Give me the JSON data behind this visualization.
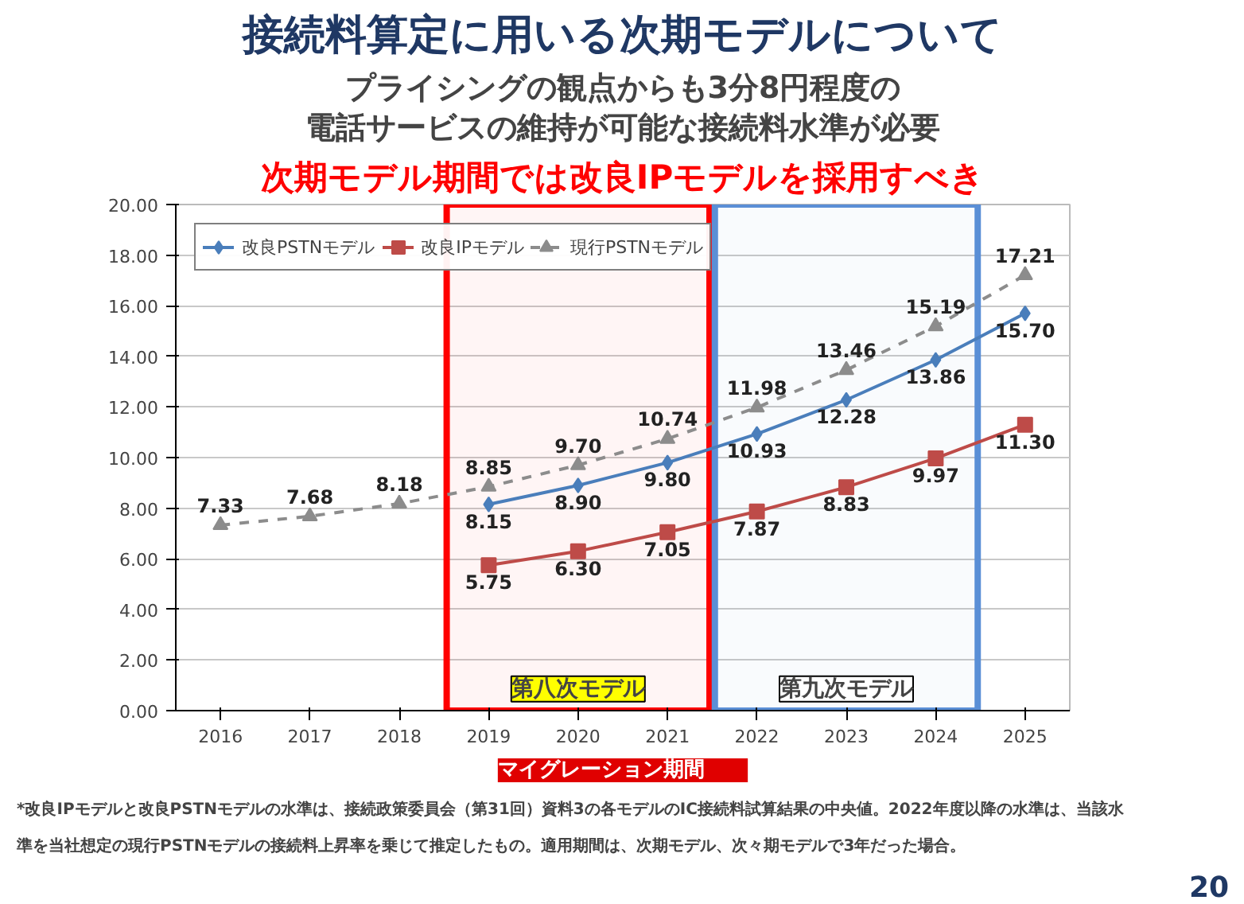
{
  "chart_data": {
    "type": "line",
    "title": "接続料算定に用いる次期モデルについて",
    "subtitle": "プライシングの観点からも3分8円程度の",
    "x": [
      2016,
      2017,
      2018,
      2019,
      2020,
      2021,
      2022,
      2023,
      2024,
      2025
    ],
    "xlim": [
      2015.5,
      2025.5
    ],
    "xticks": [
      2016,
      2017,
      2018,
      2019,
      2020,
      2021,
      2022,
      2023,
      2024,
      2025
    ],
    "ylim": [
      0,
      20
    ],
    "yticks": [
      {
        "value": 0,
        "label": "0.00"
      },
      {
        "value": 2,
        "label": "2.00"
      },
      {
        "value": 4,
        "label": "4.00"
      },
      {
        "value": 6,
        "label": "6.00"
      },
      {
        "value": 8,
        "label": "8.00"
      },
      {
        "value": 10,
        "label": "10.00"
      },
      {
        "value": 12,
        "label": "12.00"
      },
      {
        "value": 14,
        "label": "14.00"
      },
      {
        "value": 16,
        "label": "16.00"
      },
      {
        "value": 18,
        "label": "18.00"
      },
      {
        "value": 20,
        "label": "20.00"
      }
    ],
    "series": [
      {
        "name": "改良PSTNモデル",
        "color": "#4a7ebb",
        "marker": "diamond",
        "line_style": "solid",
        "values": [
          null,
          null,
          null,
          8.15,
          8.9,
          9.8,
          10.93,
          12.28,
          13.86,
          15.7
        ],
        "value_labels": [
          null,
          null,
          null,
          "8.15",
          "8.90",
          "9.80",
          "10.93",
          "12.28",
          "13.86",
          "15.70"
        ]
      },
      {
        "name": "改良IPモデル",
        "color": "#be4b48",
        "marker": "square",
        "line_style": "solid",
        "values": [
          null,
          null,
          null,
          5.75,
          6.3,
          7.05,
          7.87,
          8.83,
          9.97,
          11.3
        ],
        "value_labels": [
          null,
          null,
          null,
          "5.75",
          "6.30",
          "7.05",
          "7.87",
          "8.83",
          "9.97",
          "11.30"
        ]
      },
      {
        "name": "現行PSTNモデル",
        "color": "#8c8c8c",
        "marker": "triangle",
        "line_style": "dashed",
        "values": [
          7.33,
          7.68,
          8.18,
          8.85,
          9.7,
          10.74,
          11.98,
          13.46,
          15.19,
          17.21
        ],
        "value_labels": [
          "7.33",
          "7.68",
          "8.18",
          "8.85",
          "9.70",
          "10.74",
          "11.98",
          "13.46",
          "15.19",
          "17.21"
        ]
      }
    ],
    "bands": [
      {
        "axis": "x",
        "from": 2018.5,
        "to": 2021.5,
        "label": "第八次モデル",
        "color": "#ff0000"
      },
      {
        "axis": "x",
        "from": 2021.5,
        "to": 2024.5,
        "label": "第九次モデル",
        "color": "#5b8fd6"
      }
    ],
    "annotations": [
      "電話サービスの維持が可能な接続料水準が必要",
      "次期モデル期間では改良IPモデルを採用すべき",
      "マイグレーション期間",
      "*改良IPモデルと改良PSTNモデルの水準は、接続政策委員会（第31回）資料3の各モデルのIC接続料試算結果の中央値。2022年度以降の水準は、当該水",
      "準を当社想定の現行PSTNモデルの接続料上昇率を乗じて推定したもの。適用期間は、次期モデル、次々期モデルで3年だった場合。",
      "20"
    ],
    "grid": "y",
    "legend": "top left"
  }
}
